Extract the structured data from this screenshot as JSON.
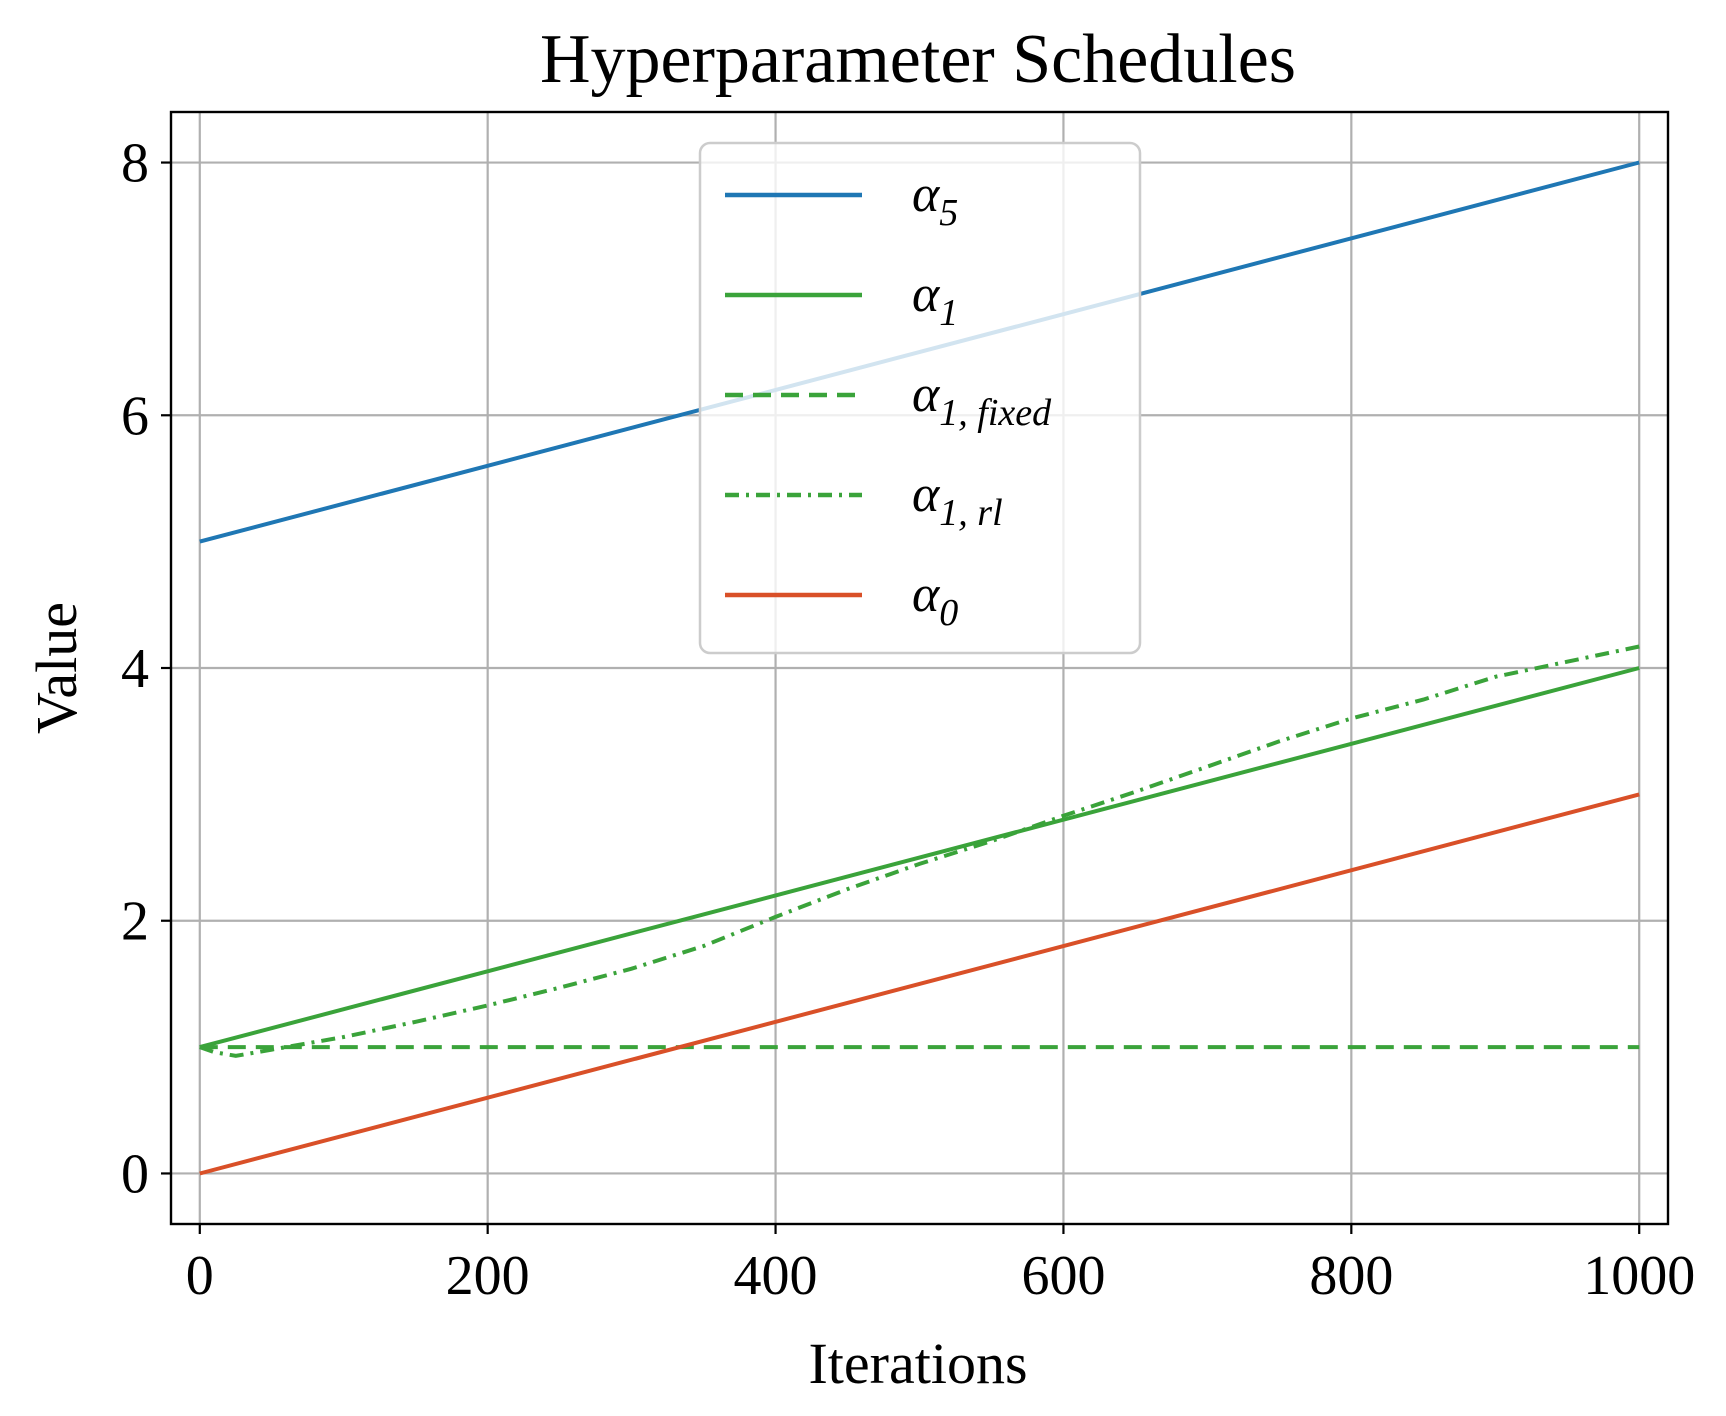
{
  "chart_data": {
    "type": "line",
    "title": "Hyperparameter Schedules",
    "xlabel": "Iterations",
    "ylabel": "Value",
    "xlim": [
      -20,
      1020
    ],
    "ylim": [
      -0.4,
      8.4
    ],
    "xticks": [
      0,
      200,
      400,
      600,
      800,
      1000
    ],
    "yticks": [
      0,
      2,
      4,
      6,
      8
    ],
    "xtick_labels": [
      "0",
      "200",
      "400",
      "600",
      "800",
      "1000"
    ],
    "ytick_labels": [
      "0",
      "2",
      "4",
      "6",
      "8"
    ],
    "grid": true,
    "legend": {
      "placement": "upper-center"
    },
    "series": [
      {
        "name": "α5",
        "label_main": "α",
        "label_sub": "5",
        "color": "#1f77b4",
        "linestyle": "solid",
        "x": [
          0,
          1000
        ],
        "y": [
          5,
          8
        ]
      },
      {
        "name": "α1",
        "label_main": "α",
        "label_sub": "1",
        "color": "#3aa33a",
        "linestyle": "solid",
        "x": [
          0,
          1000
        ],
        "y": [
          1,
          4
        ]
      },
      {
        "name": "α1, fixed",
        "label_main": "α",
        "label_sub": "1, fixed",
        "color": "#3aa33a",
        "linestyle": "dashed",
        "x": [
          0,
          1000
        ],
        "y": [
          1,
          1
        ]
      },
      {
        "name": "α1, rl",
        "label_main": "α",
        "label_sub": "1, rl",
        "color": "#3aa33a",
        "linestyle": "dashdot",
        "x": [
          0,
          10,
          25,
          50,
          100,
          150,
          200,
          250,
          300,
          350,
          400,
          450,
          500,
          550,
          600,
          650,
          700,
          750,
          800,
          850,
          900,
          950,
          1000
        ],
        "y": [
          1.0,
          0.96,
          0.93,
          0.98,
          1.08,
          1.2,
          1.33,
          1.47,
          1.62,
          1.8,
          2.03,
          2.25,
          2.45,
          2.63,
          2.83,
          3.02,
          3.22,
          3.42,
          3.6,
          3.75,
          3.93,
          4.05,
          4.17
        ]
      },
      {
        "name": "α0",
        "label_main": "α",
        "label_sub": "0",
        "color": "#d95028",
        "linestyle": "solid",
        "x": [
          0,
          1000
        ],
        "y": [
          0,
          3
        ]
      }
    ]
  }
}
